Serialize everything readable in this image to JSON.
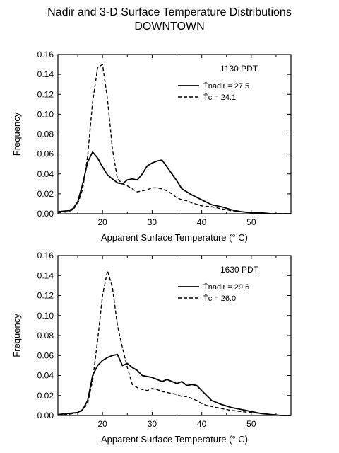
{
  "title": "Nadir and 3-D Surface Temperature Distributions",
  "subtitle": "DOWNTOWN",
  "chart_data": [
    {
      "type": "line",
      "annotation": "1130 PDT",
      "xlabel": "Apparent Surface Temperature (° C)",
      "ylabel": "Frequency",
      "xlim": [
        11,
        58
      ],
      "ylim": [
        0,
        0.16
      ],
      "xticks": [
        20,
        30,
        40,
        50
      ],
      "yticks": [
        "0.00",
        "0.02",
        "0.04",
        "0.06",
        "0.08",
        "0.10",
        "0.12",
        "0.14",
        "0.16"
      ],
      "legend_position": "top-right",
      "series": [
        {
          "name": "T̄nadir = 27.5",
          "style": "solid",
          "x": [
            11,
            13,
            14,
            15,
            16,
            17,
            18,
            19,
            20,
            21,
            22,
            23,
            24,
            25,
            26,
            27,
            28,
            29,
            30,
            31,
            32,
            33,
            34,
            35,
            36,
            37,
            38,
            40,
            42,
            44,
            46,
            48,
            50,
            52,
            54,
            56,
            58
          ],
          "y": [
            0.002,
            0.003,
            0.005,
            0.012,
            0.03,
            0.052,
            0.062,
            0.056,
            0.047,
            0.039,
            0.035,
            0.031,
            0.03,
            0.034,
            0.035,
            0.034,
            0.04,
            0.048,
            0.051,
            0.053,
            0.054,
            0.047,
            0.04,
            0.033,
            0.025,
            0.022,
            0.019,
            0.014,
            0.009,
            0.007,
            0.004,
            0.002,
            0.001,
            0.001,
            0.0,
            0.0,
            0.0
          ]
        },
        {
          "name": "T̄c = 24.1",
          "style": "dashed",
          "x": [
            11,
            13,
            14,
            15,
            16,
            17,
            18,
            19,
            20,
            21,
            22,
            23,
            24,
            25,
            26,
            27,
            28,
            29,
            30,
            31,
            32,
            33,
            34,
            35,
            36,
            37,
            38,
            40,
            42,
            44,
            46,
            48,
            50,
            52,
            54,
            56,
            58
          ],
          "y": [
            0.001,
            0.002,
            0.004,
            0.01,
            0.025,
            0.058,
            0.112,
            0.147,
            0.15,
            0.115,
            0.065,
            0.035,
            0.03,
            0.028,
            0.025,
            0.022,
            0.023,
            0.024,
            0.026,
            0.026,
            0.025,
            0.023,
            0.02,
            0.016,
            0.014,
            0.013,
            0.011,
            0.008,
            0.007,
            0.005,
            0.003,
            0.002,
            0.001,
            0.0,
            0.0,
            0.0,
            0.0
          ]
        }
      ]
    },
    {
      "type": "line",
      "annotation": "1630 PDT",
      "xlabel": "Apparent Surface Temperature (° C)",
      "ylabel": "Frequency",
      "xlim": [
        11,
        58
      ],
      "ylim": [
        0,
        0.16
      ],
      "xticks": [
        20,
        30,
        40,
        50
      ],
      "yticks": [
        "0.00",
        "0.02",
        "0.04",
        "0.06",
        "0.08",
        "0.10",
        "0.12",
        "0.14",
        "0.16"
      ],
      "legend_position": "top-right",
      "series": [
        {
          "name": "T̄nadir = 29.6",
          "style": "solid",
          "x": [
            11,
            13,
            15,
            16,
            17,
            18,
            19,
            20,
            21,
            22,
            23,
            24,
            25,
            26,
            27,
            28,
            29,
            30,
            31,
            32,
            33,
            34,
            35,
            36,
            37,
            38,
            39,
            40,
            41,
            42,
            44,
            46,
            48,
            50,
            52,
            54,
            56,
            58
          ],
          "y": [
            0.001,
            0.002,
            0.003,
            0.006,
            0.015,
            0.04,
            0.05,
            0.055,
            0.058,
            0.06,
            0.061,
            0.05,
            0.052,
            0.048,
            0.045,
            0.04,
            0.039,
            0.038,
            0.036,
            0.034,
            0.036,
            0.034,
            0.032,
            0.034,
            0.03,
            0.031,
            0.03,
            0.025,
            0.02,
            0.015,
            0.011,
            0.008,
            0.006,
            0.004,
            0.002,
            0.001,
            0.0,
            0.0
          ]
        },
        {
          "name": "T̄c = 26.0",
          "style": "dashed",
          "x": [
            11,
            13,
            15,
            16,
            17,
            18,
            19,
            20,
            21,
            22,
            23,
            24,
            25,
            26,
            27,
            28,
            29,
            30,
            31,
            32,
            33,
            34,
            35,
            36,
            37,
            38,
            39,
            40,
            41,
            42,
            44,
            46,
            48,
            50,
            52,
            54,
            56,
            58
          ],
          "y": [
            0.0,
            0.001,
            0.003,
            0.005,
            0.012,
            0.035,
            0.075,
            0.12,
            0.145,
            0.128,
            0.09,
            0.068,
            0.048,
            0.031,
            0.028,
            0.026,
            0.025,
            0.027,
            0.026,
            0.024,
            0.023,
            0.022,
            0.021,
            0.019,
            0.019,
            0.017,
            0.015,
            0.012,
            0.01,
            0.009,
            0.007,
            0.005,
            0.004,
            0.003,
            0.002,
            0.001,
            0.0,
            0.0
          ]
        }
      ]
    }
  ]
}
